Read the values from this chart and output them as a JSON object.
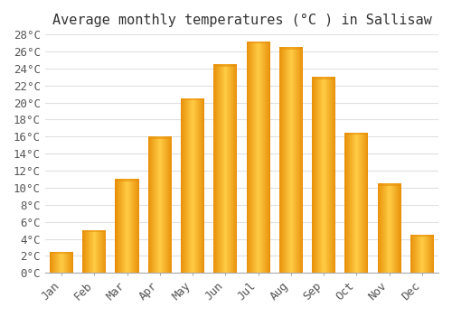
{
  "title": "Average monthly temperatures (°C ) in Sallisaw",
  "months": [
    "Jan",
    "Feb",
    "Mar",
    "Apr",
    "May",
    "Jun",
    "Jul",
    "Aug",
    "Sep",
    "Oct",
    "Nov",
    "Dec"
  ],
  "values": [
    2.5,
    5.0,
    11.0,
    16.0,
    20.5,
    24.5,
    27.2,
    26.5,
    23.0,
    16.5,
    10.5,
    4.5
  ],
  "bar_color_dark": "#E8900A",
  "bar_color_mid": "#FBB612",
  "bar_color_light": "#FFCC44",
  "ylim": [
    0,
    28
  ],
  "ytick_step": 2,
  "background_color": "#ffffff",
  "plot_bg_color": "#ffffff",
  "grid_color": "#e0e0e0",
  "title_fontsize": 11,
  "tick_fontsize": 9,
  "font_family": "monospace"
}
